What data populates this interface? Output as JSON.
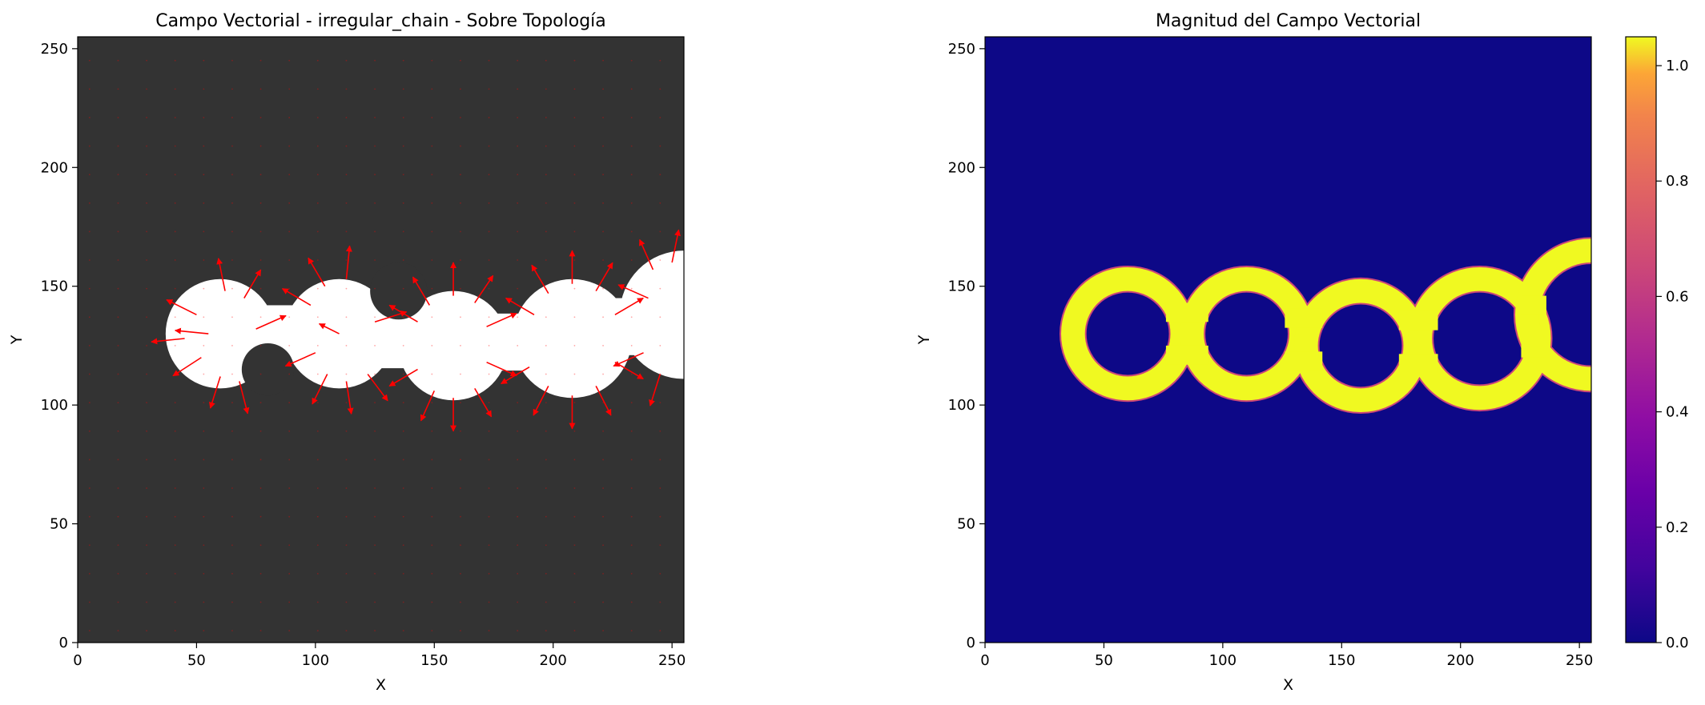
{
  "chart_data": [
    {
      "type": "quiver",
      "title": "Campo Vectorial - irregular_chain - Sobre Topología",
      "xlabel": "X",
      "ylabel": "Y",
      "xlim": [
        0,
        255
      ],
      "ylim": [
        0,
        255
      ],
      "xticks": [
        "0",
        "50",
        "100",
        "150",
        "200",
        "250"
      ],
      "yticks": [
        "0",
        "50",
        "100",
        "150",
        "200",
        "250"
      ],
      "background": "topology mask (white region on dark gray)",
      "colors": {
        "background": "#333333",
        "region": "#ffffff",
        "arrows": "#ff0000"
      },
      "shape_circles": [
        {
          "cx": 60,
          "cy": 130,
          "r": 23
        },
        {
          "cx": 110,
          "cy": 130,
          "r": 23
        },
        {
          "cx": 158,
          "cy": 125,
          "r": 23
        },
        {
          "cx": 208,
          "cy": 128,
          "r": 25
        },
        {
          "cx": 255,
          "cy": 138,
          "r": 27
        }
      ],
      "shape_bites": [
        {
          "cx": 80,
          "cy": 115,
          "r": 11
        },
        {
          "cx": 135,
          "cy": 148,
          "r": 12
        }
      ],
      "vectors": [
        {
          "x": 50,
          "y": 138,
          "u": -0.9,
          "v": 0.45
        },
        {
          "x": 55,
          "y": 130,
          "u": -1.0,
          "v": 0.1
        },
        {
          "x": 52,
          "y": 120,
          "u": -0.85,
          "v": -0.55
        },
        {
          "x": 60,
          "y": 112,
          "u": -0.3,
          "v": -0.95
        },
        {
          "x": 68,
          "y": 110,
          "u": 0.25,
          "v": -0.97
        },
        {
          "x": 62,
          "y": 148,
          "u": -0.2,
          "v": 0.98
        },
        {
          "x": 70,
          "y": 145,
          "u": 0.5,
          "v": 0.85
        },
        {
          "x": 75,
          "y": 132,
          "u": 0.9,
          "v": 0.4
        },
        {
          "x": 45,
          "y": 128,
          "u": -1.0,
          "v": -0.1
        },
        {
          "x": 98,
          "y": 142,
          "u": -0.85,
          "v": 0.5
        },
        {
          "x": 104,
          "y": 150,
          "u": -0.5,
          "v": 0.85
        },
        {
          "x": 113,
          "y": 153,
          "u": 0.1,
          "v": 1.0
        },
        {
          "x": 100,
          "y": 122,
          "u": -0.9,
          "v": -0.4
        },
        {
          "x": 105,
          "y": 113,
          "u": -0.45,
          "v": -0.9
        },
        {
          "x": 113,
          "y": 110,
          "u": 0.15,
          "v": -0.98
        },
        {
          "x": 122,
          "y": 113,
          "u": 0.6,
          "v": -0.8
        },
        {
          "x": 125,
          "y": 135,
          "u": 0.95,
          "v": 0.3
        },
        {
          "x": 110,
          "y": 130,
          "u": -0.6,
          "v": 0.3
        },
        {
          "x": 143,
          "y": 135,
          "u": -0.85,
          "v": 0.5
        },
        {
          "x": 148,
          "y": 142,
          "u": -0.5,
          "v": 0.85
        },
        {
          "x": 158,
          "y": 146,
          "u": 0.0,
          "v": 1.0
        },
        {
          "x": 167,
          "y": 143,
          "u": 0.55,
          "v": 0.82
        },
        {
          "x": 143,
          "y": 115,
          "u": -0.85,
          "v": -0.5
        },
        {
          "x": 150,
          "y": 106,
          "u": -0.4,
          "v": -0.9
        },
        {
          "x": 158,
          "y": 103,
          "u": 0.0,
          "v": -1.0
        },
        {
          "x": 167,
          "y": 107,
          "u": 0.5,
          "v": -0.85
        },
        {
          "x": 172,
          "y": 118,
          "u": 0.9,
          "v": -0.4
        },
        {
          "x": 172,
          "y": 133,
          "u": 0.9,
          "v": 0.4
        },
        {
          "x": 192,
          "y": 138,
          "u": -0.85,
          "v": 0.5
        },
        {
          "x": 198,
          "y": 147,
          "u": -0.5,
          "v": 0.85
        },
        {
          "x": 208,
          "y": 151,
          "u": 0.0,
          "v": 1.0
        },
        {
          "x": 218,
          "y": 148,
          "u": 0.5,
          "v": 0.85
        },
        {
          "x": 190,
          "y": 116,
          "u": -0.85,
          "v": -0.5
        },
        {
          "x": 198,
          "y": 108,
          "u": -0.45,
          "v": -0.88
        },
        {
          "x": 208,
          "y": 104,
          "u": 0.0,
          "v": -1.0
        },
        {
          "x": 218,
          "y": 108,
          "u": 0.45,
          "v": -0.88
        },
        {
          "x": 226,
          "y": 118,
          "u": 0.85,
          "v": -0.5
        },
        {
          "x": 226,
          "y": 138,
          "u": 0.85,
          "v": 0.5
        },
        {
          "x": 242,
          "y": 157,
          "u": -0.4,
          "v": 0.9
        },
        {
          "x": 250,
          "y": 160,
          "u": 0.2,
          "v": 0.98
        },
        {
          "x": 240,
          "y": 145,
          "u": -0.9,
          "v": 0.4
        },
        {
          "x": 238,
          "y": 122,
          "u": -0.9,
          "v": -0.4
        },
        {
          "x": 245,
          "y": 113,
          "u": -0.3,
          "v": -0.95
        }
      ]
    },
    {
      "type": "heatmap",
      "title": "Magnitud del Campo Vectorial",
      "xlabel": "X",
      "ylabel": "Y",
      "xlim": [
        0,
        255
      ],
      "ylim": [
        0,
        255
      ],
      "xticks": [
        "0",
        "50",
        "100",
        "150",
        "200",
        "250"
      ],
      "yticks": [
        "0",
        "50",
        "100",
        "150",
        "200",
        "250"
      ],
      "colormap": "plasma",
      "colorbar_range": [
        0.0,
        1.05
      ],
      "colorbar_ticks": [
        "0.0",
        "0.2",
        "0.4",
        "0.6",
        "0.8",
        "1.0"
      ],
      "colors": {
        "low": "#0d0887",
        "high": "#f0f921",
        "edge": "#cc4778"
      },
      "background_value": 0.0,
      "ring_value": 1.03,
      "ring_width": 10,
      "ring_circles": [
        {
          "cx": 60,
          "cy": 130,
          "r": 23
        },
        {
          "cx": 110,
          "cy": 130,
          "r": 23
        },
        {
          "cx": 158,
          "cy": 125,
          "r": 23
        },
        {
          "cx": 208,
          "cy": 128,
          "r": 25
        },
        {
          "cx": 255,
          "cy": 138,
          "r": 27
        }
      ]
    }
  ]
}
